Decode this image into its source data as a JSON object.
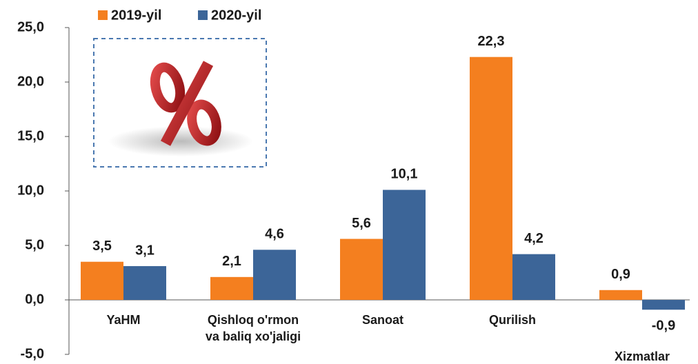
{
  "chart_data": {
    "type": "bar",
    "categories": [
      "YaHM",
      "Qishloq o'rmon\nva baliq xo'jaligi",
      "Sanoat",
      "Qurilish",
      "Xizmatlar"
    ],
    "series": [
      {
        "name": "2019-yil",
        "color": "#f47f1f",
        "values": [
          3.5,
          2.1,
          5.6,
          22.3,
          0.9
        ],
        "value_labels": [
          "3,5",
          "2,1",
          "5,6",
          "22,3",
          "0,9"
        ]
      },
      {
        "name": "2020-yil",
        "color": "#3c6598",
        "values": [
          3.1,
          4.6,
          10.1,
          4.2,
          -0.9
        ],
        "value_labels": [
          "3,1",
          "4,6",
          "10,1",
          "4,2",
          "-0,9"
        ]
      }
    ],
    "ylim": [
      -5,
      25
    ],
    "yticks": [
      {
        "value": -5,
        "label": "-5,0"
      },
      {
        "value": 0,
        "label": "0,0"
      },
      {
        "value": 5,
        "label": "5,0"
      },
      {
        "value": 10,
        "label": "10,0"
      },
      {
        "value": 15,
        "label": "15,0"
      },
      {
        "value": 20,
        "label": "20,0"
      },
      {
        "value": 25,
        "label": "25,0"
      }
    ],
    "legend": "top-left"
  }
}
